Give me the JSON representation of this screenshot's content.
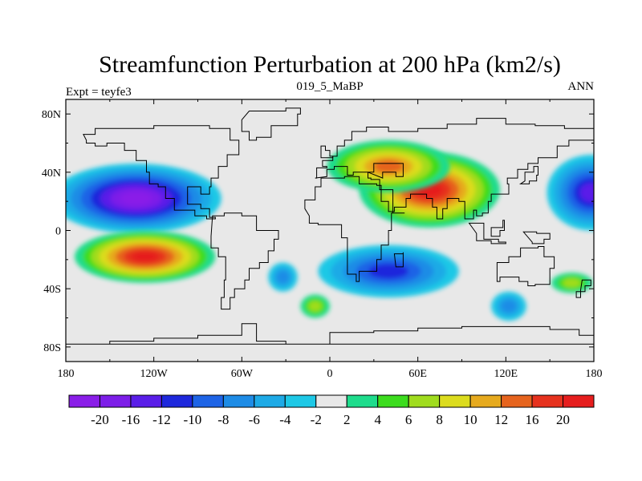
{
  "title": "Streamfunction Perturbation at 200 hPa (km2/s)",
  "left_label": "Expt = teyfe3",
  "center_label": "019_5_MaBP",
  "right_label": "ANN",
  "map": {
    "background_color": "#e8e8e8",
    "lon_ticks": [
      {
        "value": -180,
        "label": "180"
      },
      {
        "value": -120,
        "label": "120W"
      },
      {
        "value": -60,
        "label": "60W"
      },
      {
        "value": 0,
        "label": "0"
      },
      {
        "value": 60,
        "label": "60E"
      },
      {
        "value": 120,
        "label": "120E"
      },
      {
        "value": 180,
        "label": "180"
      }
    ],
    "lat_ticks": [
      {
        "value": 80,
        "label": "80N"
      },
      {
        "value": 40,
        "label": "40N"
      },
      {
        "value": 0,
        "label": "0"
      },
      {
        "value": -40,
        "label": "40S"
      },
      {
        "value": -80,
        "label": "80S"
      }
    ],
    "lon_range": [
      -180,
      180
    ],
    "lat_range": [
      -90,
      90
    ]
  },
  "colorbar": {
    "colors": [
      "#8a1ee8",
      "#7d1ee8",
      "#5a1ee8",
      "#1e28dc",
      "#1e64e6",
      "#1e8ce6",
      "#1eaae6",
      "#1ec8e6",
      "#e8e8e8",
      "#1edc8c",
      "#3cdc1e",
      "#a0dc1e",
      "#dcdc1e",
      "#e6aa1e",
      "#e6641e",
      "#e6321e",
      "#e61e1e"
    ],
    "labels": [
      "-20",
      "-16",
      "-12",
      "-10",
      "-8",
      "-6",
      "-4",
      "-2",
      "2",
      "4",
      "6",
      "8",
      "10",
      "12",
      "16",
      "20"
    ]
  },
  "features": [
    {
      "lon": -132,
      "lat": 22,
      "value": -22,
      "rx": 58,
      "ry": 24
    },
    {
      "lon": -126,
      "lat": -18,
      "value": 19,
      "rx": 48,
      "ry": 18
    },
    {
      "lon": 68,
      "lat": 28,
      "value": 18,
      "rx": 48,
      "ry": 26
    },
    {
      "lon": 40,
      "lat": 44,
      "value": 10,
      "rx": 42,
      "ry": 18
    },
    {
      "lon": 40,
      "lat": -28,
      "value": -9,
      "rx": 48,
      "ry": 18
    },
    {
      "lon": 178,
      "lat": 26,
      "value": -10,
      "rx": 30,
      "ry": 26
    },
    {
      "lon": -32,
      "lat": -32,
      "value": -4,
      "rx": 10,
      "ry": 10
    },
    {
      "lon": -10,
      "lat": -52,
      "value": 4,
      "rx": 10,
      "ry": 8
    },
    {
      "lon": 122,
      "lat": -52,
      "value": -4,
      "rx": 12,
      "ry": 10
    },
    {
      "lon": 165,
      "lat": -36,
      "value": 4,
      "rx": 14,
      "ry": 7
    }
  ]
}
